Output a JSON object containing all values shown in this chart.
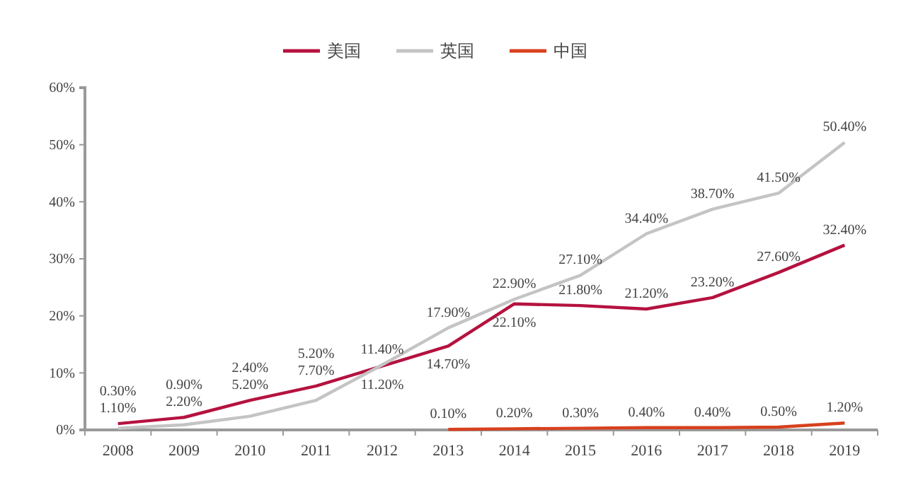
{
  "chart_data": {
    "type": "line",
    "categories": [
      "2008",
      "2009",
      "2010",
      "2011",
      "2012",
      "2013",
      "2014",
      "2015",
      "2016",
      "2017",
      "2018",
      "2019"
    ],
    "series": [
      {
        "name": "美国",
        "color": "#b5123f",
        "values": [
          1.1,
          2.2,
          5.2,
          7.7,
          11.2,
          14.7,
          22.1,
          21.8,
          21.2,
          23.2,
          27.6,
          32.4
        ],
        "value_labels": [
          "1.10%",
          "2.20%",
          "5.20%",
          "7.70%",
          "11.20%",
          "14.70%",
          "22.10%",
          "21.80%",
          "21.20%",
          "23.20%",
          "27.60%",
          "32.40%"
        ]
      },
      {
        "name": "英国",
        "color": "#c4c4c4",
        "values": [
          0.3,
          0.9,
          2.4,
          5.2,
          11.4,
          17.9,
          22.9,
          27.1,
          34.4,
          38.7,
          41.5,
          50.4
        ],
        "value_labels": [
          "0.30%",
          "0.90%",
          "2.40%",
          "5.20%",
          "11.40%",
          "17.90%",
          "22.90%",
          "27.10%",
          "34.40%",
          "38.70%",
          "41.50%",
          "50.40%"
        ]
      },
      {
        "name": "中国",
        "color": "#d8401e",
        "values": [
          null,
          null,
          null,
          null,
          null,
          0.1,
          0.2,
          0.3,
          0.4,
          0.4,
          0.5,
          1.2
        ],
        "value_labels": [
          null,
          null,
          null,
          null,
          null,
          "0.10%",
          "0.20%",
          "0.30%",
          "0.40%",
          "0.40%",
          "0.50%",
          "1.20%"
        ]
      }
    ],
    "ylim": [
      0,
      60
    ],
    "yticks": [
      {
        "value": 0,
        "label": "0%"
      },
      {
        "value": 10,
        "label": "10%"
      },
      {
        "value": 20,
        "label": "20%"
      },
      {
        "value": 30,
        "label": "30%"
      },
      {
        "value": 40,
        "label": "40%"
      },
      {
        "value": 50,
        "label": "50%"
      },
      {
        "value": 60,
        "label": "60%"
      }
    ],
    "grid": false,
    "legend": "top",
    "marker": "none",
    "line_style": "solid"
  }
}
